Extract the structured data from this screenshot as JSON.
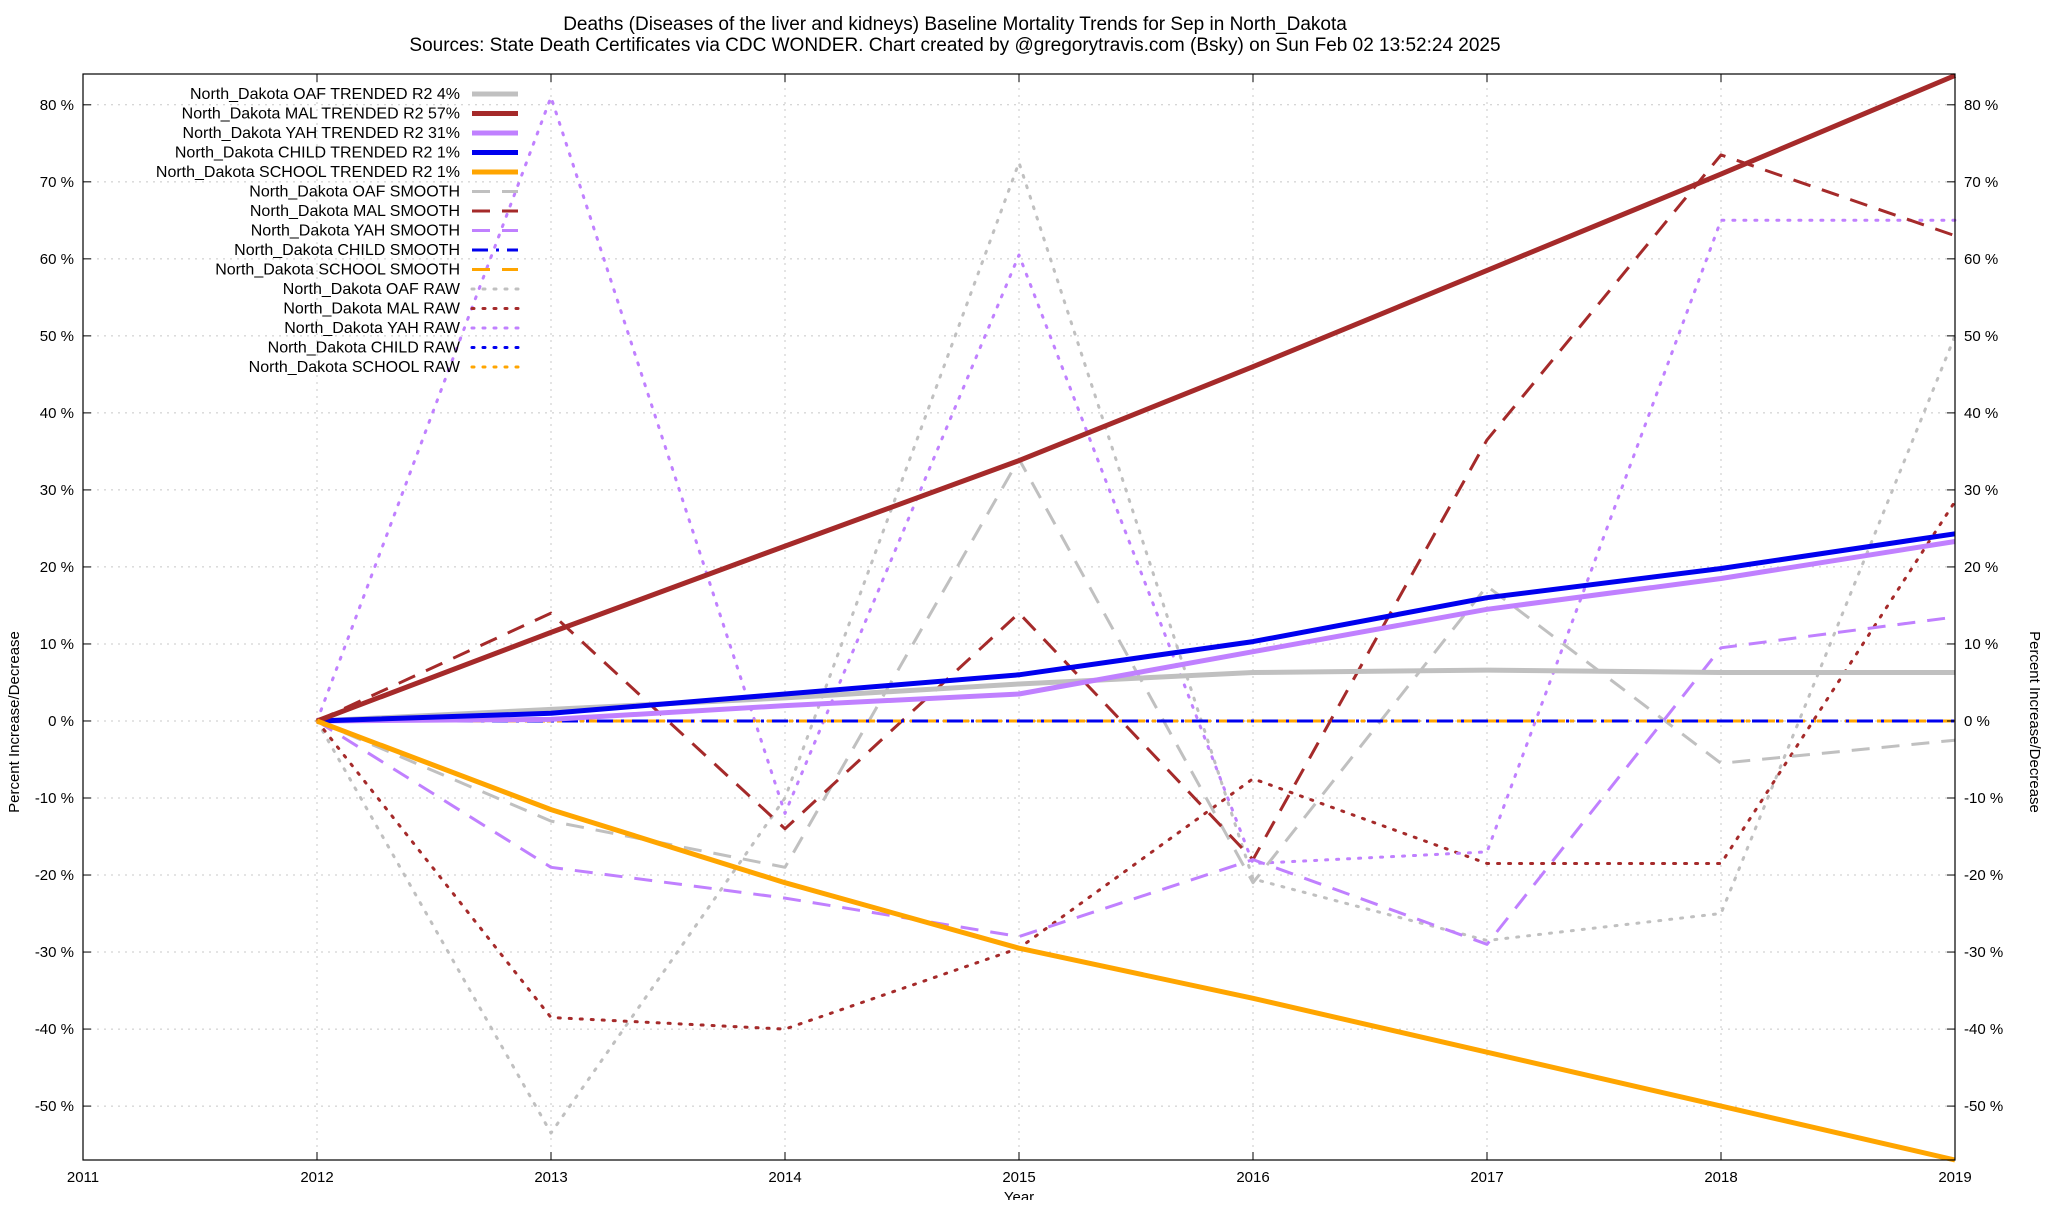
{
  "chart_data": {
    "type": "line",
    "title_line1": "Deaths (Diseases of the liver and kidneys)  Baseline Mortality Trends for Sep in North_Dakota",
    "title_line2": "Sources: State Death Certificates via CDC WONDER.              Chart created by @gregorytravis.com (Bsky) on Sun Feb 02 13:52:24 2025",
    "xlabel": "Year",
    "ylabel_left": "Percent Increase/Decrease",
    "ylabel_right": "Percent Increase/Decrease",
    "xlim": [
      2011,
      2019
    ],
    "ylim": [
      -57,
      84
    ],
    "x_ticks": [
      2011,
      2012,
      2013,
      2014,
      2015,
      2016,
      2017,
      2018,
      2019
    ],
    "y_ticks": [
      -50,
      -40,
      -30,
      -20,
      -10,
      0,
      10,
      20,
      30,
      40,
      50,
      60,
      70,
      80
    ],
    "y_tick_labels": [
      "-50 %",
      "-40 %",
      "-30 %",
      "-20 %",
      "-10 %",
      "0 %",
      "10 %",
      "20 %",
      "30 %",
      "40 %",
      "50 %",
      "60 %",
      "70 %",
      "80 %"
    ],
    "grid": true,
    "legend_position": "top-left",
    "x": [
      2012,
      2013,
      2014,
      2015,
      2016,
      2017,
      2018,
      2019
    ],
    "series": [
      {
        "name": "North_Dakota OAF TRENDED R2   4%",
        "style": "solid",
        "color": "#c0c0c0",
        "width": 5,
        "values": [
          0,
          1.5,
          3,
          4.8,
          6.3,
          6.6,
          6.3,
          6.3
        ]
      },
      {
        "name": "North_Dakota MAL TRENDED R2  57%",
        "style": "solid",
        "color": "#a52a2a",
        "width": 5,
        "values": [
          0,
          11.5,
          22.7,
          33.8,
          46.0,
          58.5,
          71.0,
          83.8
        ]
      },
      {
        "name": "North_Dakota YAH TRENDED R2  31%",
        "style": "solid",
        "color": "#c080ff",
        "width": 5,
        "values": [
          0,
          0.2,
          2.0,
          3.5,
          9.0,
          14.5,
          18.5,
          23.3
        ]
      },
      {
        "name": "North_Dakota CHILD TRENDED R2   1%",
        "style": "solid",
        "color": "#0000ee",
        "width": 5,
        "values": [
          0,
          1.0,
          3.5,
          6.0,
          10.3,
          16.0,
          19.8,
          24.3
        ]
      },
      {
        "name": "North_Dakota SCHOOL TRENDED R2   1%",
        "style": "solid",
        "color": "#ffa500",
        "width": 5,
        "values": [
          0,
          -11.5,
          -21.0,
          -29.5,
          -36.0,
          -43.0,
          -50.0,
          -57.0
        ]
      },
      {
        "name": "North_Dakota OAF SMOOTH",
        "style": "dash",
        "color": "#c0c0c0",
        "width": 3,
        "values": [
          0,
          -13.0,
          -19.0,
          34.0,
          -21.0,
          17.5,
          -5.5,
          -2.5
        ]
      },
      {
        "name": "North_Dakota MAL SMOOTH",
        "style": "dash",
        "color": "#a52a2a",
        "width": 3,
        "values": [
          0,
          14.0,
          -14.0,
          14.0,
          -18.0,
          36.5,
          73.5,
          63.0
        ]
      },
      {
        "name": "North_Dakota YAH SMOOTH",
        "style": "dash",
        "color": "#c080ff",
        "width": 3,
        "values": [
          0,
          -19.0,
          -23.0,
          -28.0,
          -18.0,
          -29.0,
          9.5,
          13.5
        ]
      },
      {
        "name": "North_Dakota CHILD SMOOTH",
        "style": "dashdot",
        "color": "#0000ee",
        "width": 3,
        "values": [
          0,
          0,
          0,
          0,
          0,
          0,
          0,
          0
        ]
      },
      {
        "name": "North_Dakota SCHOOL SMOOTH",
        "style": "dash",
        "color": "#ffa500",
        "width": 3,
        "values": [
          0,
          0,
          0,
          0,
          0,
          0,
          0,
          0
        ]
      },
      {
        "name": "North_Dakota OAF RAW",
        "style": "dot",
        "color": "#c0c0c0",
        "width": 3,
        "values": [
          0,
          -53.5,
          -10.0,
          72.5,
          -20.5,
          -28.5,
          -25.0,
          50.0
        ]
      },
      {
        "name": "North_Dakota MAL RAW",
        "style": "dot",
        "color": "#a52a2a",
        "width": 3,
        "values": [
          0,
          -38.5,
          -40.0,
          -29.5,
          -7.5,
          -18.5,
          -18.5,
          28.5
        ]
      },
      {
        "name": "North_Dakota YAH RAW",
        "style": "dot",
        "color": "#c080ff",
        "width": 3,
        "values": [
          0,
          81.0,
          -12.0,
          60.5,
          -18.5,
          -17.0,
          65.0,
          65.0
        ]
      },
      {
        "name": "North_Dakota CHILD RAW",
        "style": "dot",
        "color": "#0000ee",
        "width": 3,
        "values": [
          0,
          0,
          0,
          0,
          0,
          0,
          0,
          0
        ]
      },
      {
        "name": "North_Dakota SCHOOL RAW",
        "style": "dot",
        "color": "#ffa500",
        "width": 3,
        "values": [
          0,
          0,
          0,
          0,
          0,
          0,
          0,
          0
        ]
      }
    ]
  }
}
